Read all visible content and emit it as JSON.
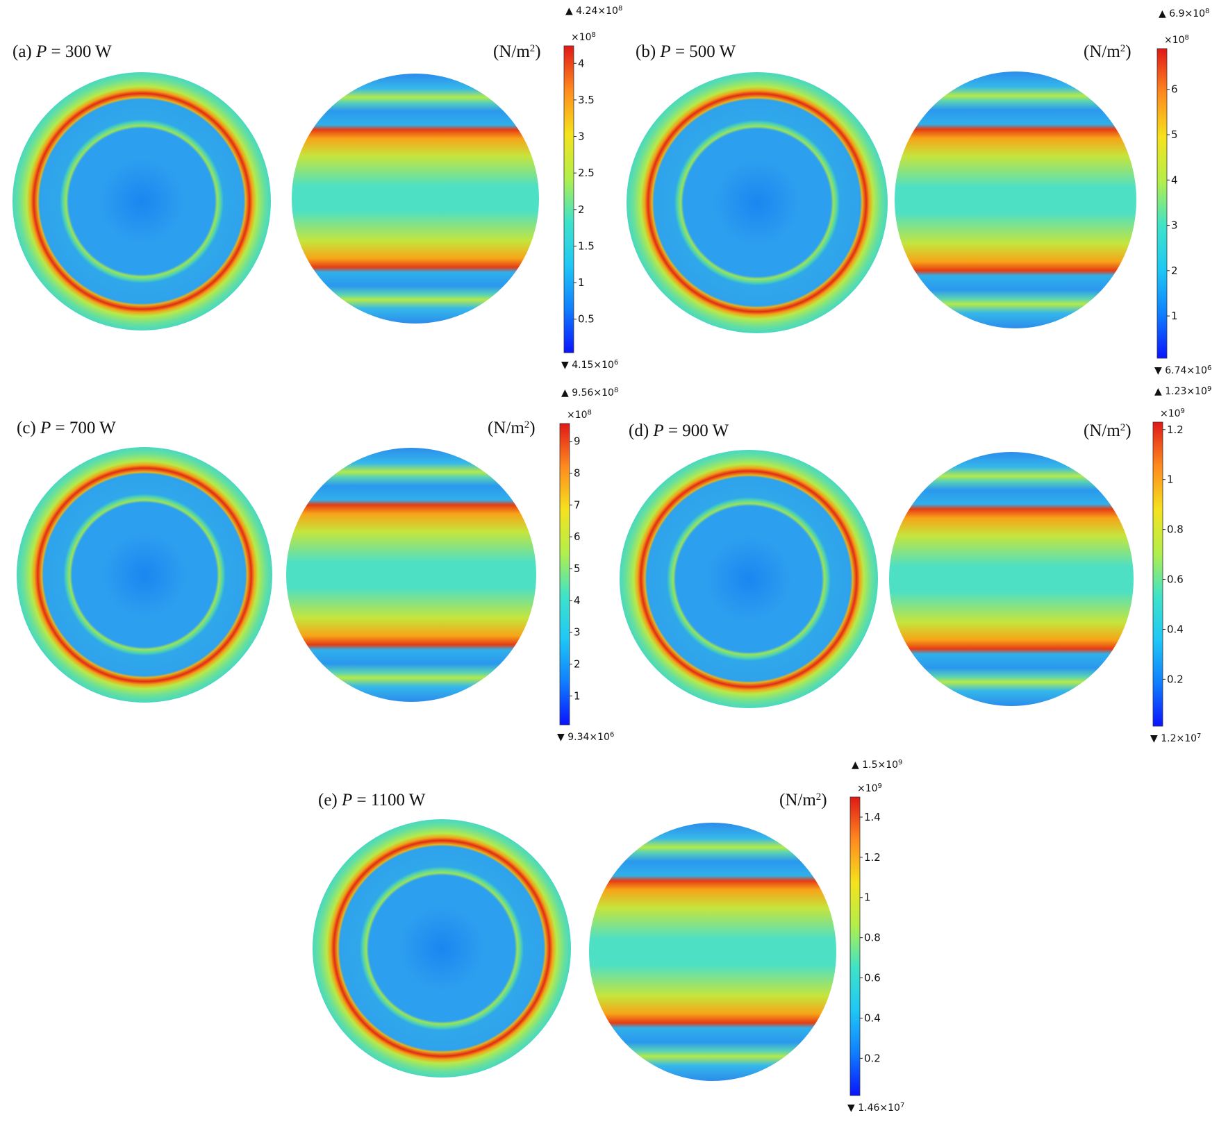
{
  "colorbar_colors": [
    "#0a14ff",
    "#0f7fff",
    "#1fc8f5",
    "#3fe3c8",
    "#b3ef4a",
    "#f5e21c",
    "#ff8a1e",
    "#e01818"
  ],
  "panels": [
    {
      "id": "a",
      "label_prefix": "(a) ",
      "label_var": "P",
      "label_value": " = 300 W",
      "unit_base": "(N/m",
      "unit_sup": "2",
      "unit_close": ")",
      "max_base": "4.24×10",
      "max_exp": "8",
      "min_base": "4.15×10",
      "min_exp": "6",
      "mult_base": "×10",
      "mult_exp": "8",
      "scale_min": 0.0415,
      "scale_max": 4.24,
      "ticks": [
        "0.5",
        "1",
        "1.5",
        "2",
        "2.5",
        "3",
        "3.5",
        "4"
      ],
      "tick_values": [
        0.5,
        1,
        1.5,
        2,
        2.5,
        3,
        3.5,
        4
      ]
    },
    {
      "id": "b",
      "label_prefix": "(b) ",
      "label_var": "P",
      "label_value": " = 500 W",
      "unit_base": "(N/m",
      "unit_sup": "2",
      "unit_close": ")",
      "max_base": "6.9×10",
      "max_exp": "8",
      "min_base": "6.74×10",
      "min_exp": "6",
      "mult_base": "×10",
      "mult_exp": "8",
      "scale_min": 0.0674,
      "scale_max": 6.9,
      "ticks": [
        "1",
        "2",
        "3",
        "4",
        "5",
        "6"
      ],
      "tick_values": [
        1,
        2,
        3,
        4,
        5,
        6
      ]
    },
    {
      "id": "c",
      "label_prefix": "(c) ",
      "label_var": "P",
      "label_value": " = 700 W",
      "unit_base": "(N/m",
      "unit_sup": "2",
      "unit_close": ")",
      "max_base": "9.56×10",
      "max_exp": "8",
      "min_base": "9.34×10",
      "min_exp": "6",
      "mult_base": "×10",
      "mult_exp": "8",
      "scale_min": 0.0934,
      "scale_max": 9.56,
      "ticks": [
        "1",
        "2",
        "3",
        "4",
        "5",
        "6",
        "7",
        "8",
        "9"
      ],
      "tick_values": [
        1,
        2,
        3,
        4,
        5,
        6,
        7,
        8,
        9
      ]
    },
    {
      "id": "d",
      "label_prefix": "(d) ",
      "label_var": "P",
      "label_value": " = 900 W",
      "unit_base": "(N/m",
      "unit_sup": "2",
      "unit_close": ")",
      "max_base": "1.23×10",
      "max_exp": "9",
      "min_base": "1.2×10",
      "min_exp": "7",
      "mult_base": "×10",
      "mult_exp": "9",
      "scale_min": 0.012,
      "scale_max": 1.23,
      "ticks": [
        "0.2",
        "0.4",
        "0.6",
        "0.8",
        "1",
        "1.2"
      ],
      "tick_values": [
        0.2,
        0.4,
        0.6,
        0.8,
        1,
        1.2
      ]
    },
    {
      "id": "e",
      "label_prefix": "(e) ",
      "label_var": "P",
      "label_value": " = 1100 W",
      "unit_base": "(N/m",
      "unit_sup": "2",
      "unit_close": ")",
      "max_base": "1.5×10",
      "max_exp": "9",
      "min_base": "1.46×10",
      "min_exp": "7",
      "mult_base": "×10",
      "mult_exp": "9",
      "scale_min": 0.0146,
      "scale_max": 1.5,
      "ticks": [
        "0.2",
        "0.4",
        "0.6",
        "0.8",
        "1",
        "1.2",
        "1.4"
      ],
      "tick_values": [
        0.2,
        0.4,
        0.6,
        0.8,
        1,
        1.2,
        1.4
      ]
    }
  ]
}
